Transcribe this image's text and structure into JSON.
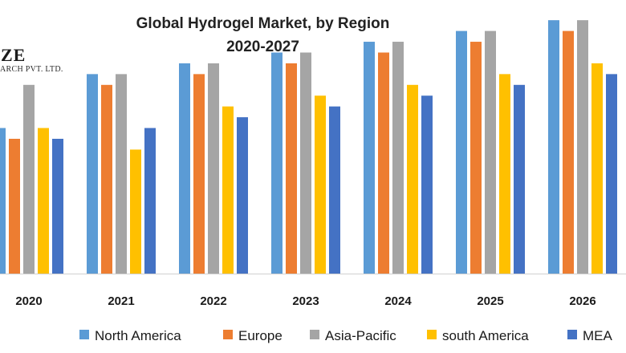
{
  "title": {
    "line1": "Global Hydrogel Market, by Region",
    "line2": "2020-2027"
  },
  "logo": {
    "main": "ZE",
    "sub": "ARCH PVT. LTD."
  },
  "chart_data": {
    "type": "bar",
    "title": "Global Hydrogel Market, by Region 2020-2027",
    "xlabel": "",
    "ylabel": "",
    "categories": [
      "2020",
      "2021",
      "2022",
      "2023",
      "2024",
      "2025",
      "2026"
    ],
    "ylim": [
      0,
      25
    ],
    "grid": false,
    "legend": "bottom",
    "series": [
      {
        "name": "North America",
        "color": "#5B9BD5",
        "values": [
          13.5,
          18.5,
          19.5,
          20.5,
          21.5,
          22.5,
          23.5
        ]
      },
      {
        "name": "Europe",
        "color": "#ED7D31",
        "values": [
          12.5,
          17.5,
          18.5,
          19.5,
          20.5,
          21.5,
          22.5
        ]
      },
      {
        "name": "Asia-Pacific",
        "color": "#A5A5A5",
        "values": [
          17.5,
          18.5,
          19.5,
          20.5,
          21.5,
          22.5,
          23.5
        ]
      },
      {
        "name": "south America",
        "color": "#FFC000",
        "values": [
          13.5,
          11.5,
          15.5,
          16.5,
          17.5,
          18.5,
          19.5
        ]
      },
      {
        "name": "MEA",
        "color": "#4472C4",
        "values": [
          12.5,
          13.5,
          14.5,
          15.5,
          16.5,
          17.5,
          18.5
        ]
      }
    ]
  }
}
